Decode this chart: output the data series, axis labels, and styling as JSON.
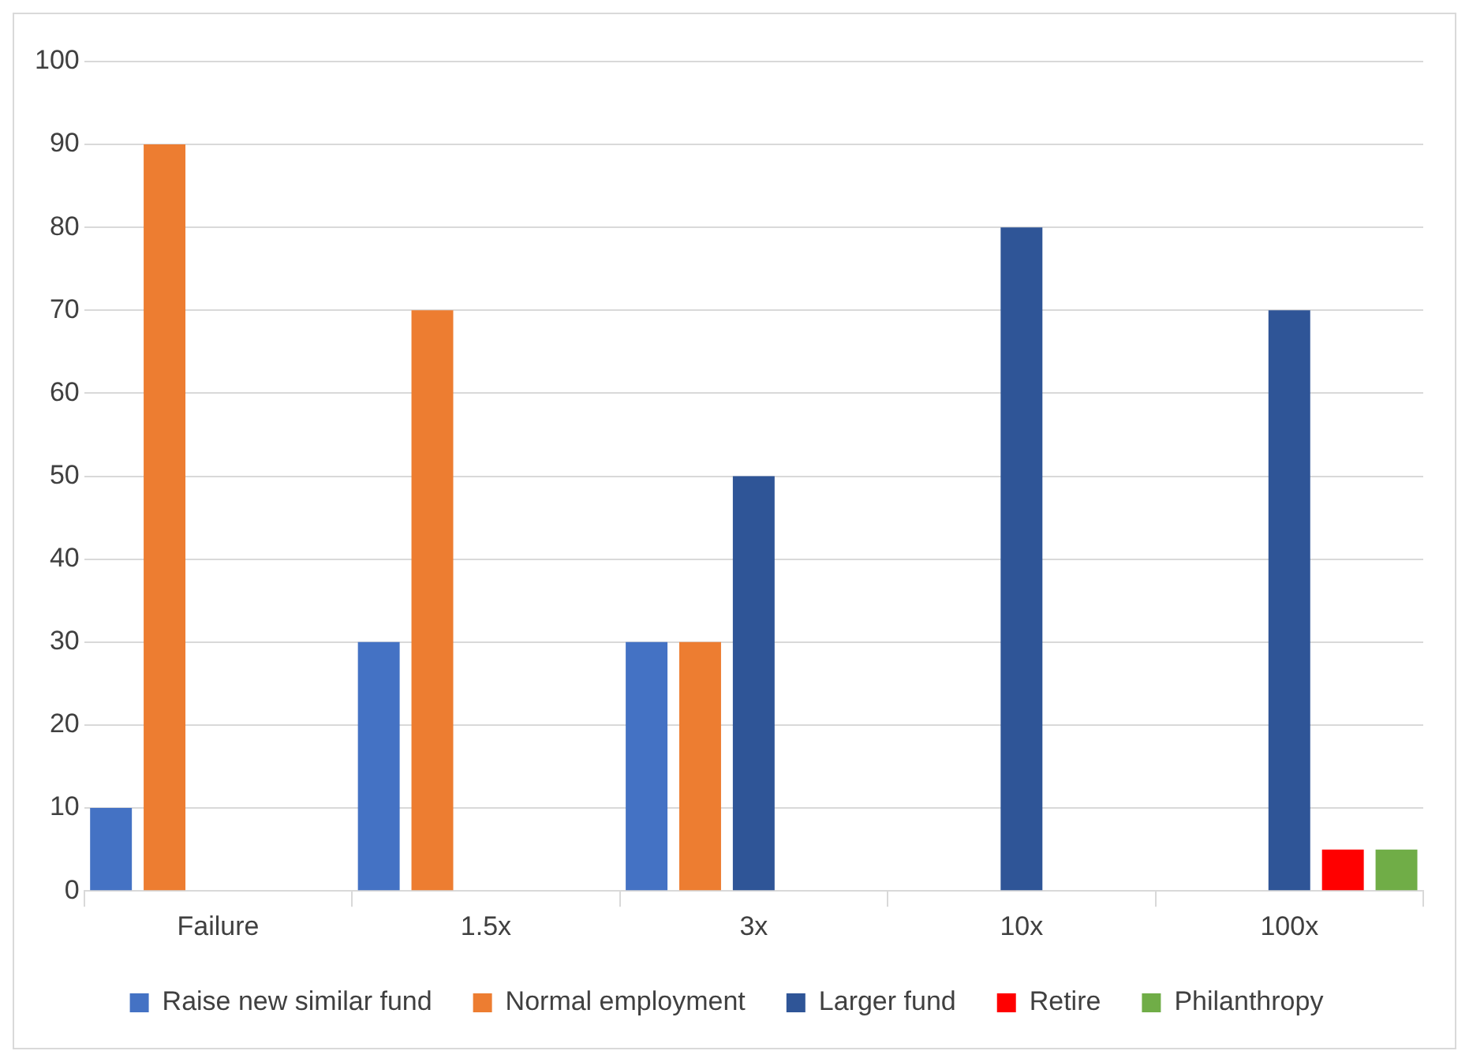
{
  "chart_data": {
    "type": "bar",
    "categories": [
      "Failure",
      "1.5x",
      "3x",
      "10x",
      "100x"
    ],
    "series": [
      {
        "name": "Raise new similar fund",
        "color": "#4472c4",
        "values": [
          10,
          30,
          30,
          null,
          null
        ]
      },
      {
        "name": "Normal employment",
        "color": "#ed7d31",
        "values": [
          90,
          70,
          30,
          null,
          null
        ]
      },
      {
        "name": "Larger fund",
        "color": "#2f5597",
        "values": [
          null,
          null,
          50,
          80,
          70
        ]
      },
      {
        "name": "Retire",
        "color": "#ff0000",
        "values": [
          null,
          null,
          null,
          null,
          5
        ]
      },
      {
        "name": "Philanthropy",
        "color": "#70ad47",
        "values": [
          null,
          null,
          null,
          null,
          5
        ]
      }
    ],
    "ylim": [
      0,
      100
    ],
    "yticks": [
      0,
      10,
      20,
      30,
      40,
      50,
      60,
      70,
      80,
      90,
      100
    ],
    "grid": "y",
    "legend": "bottom"
  }
}
